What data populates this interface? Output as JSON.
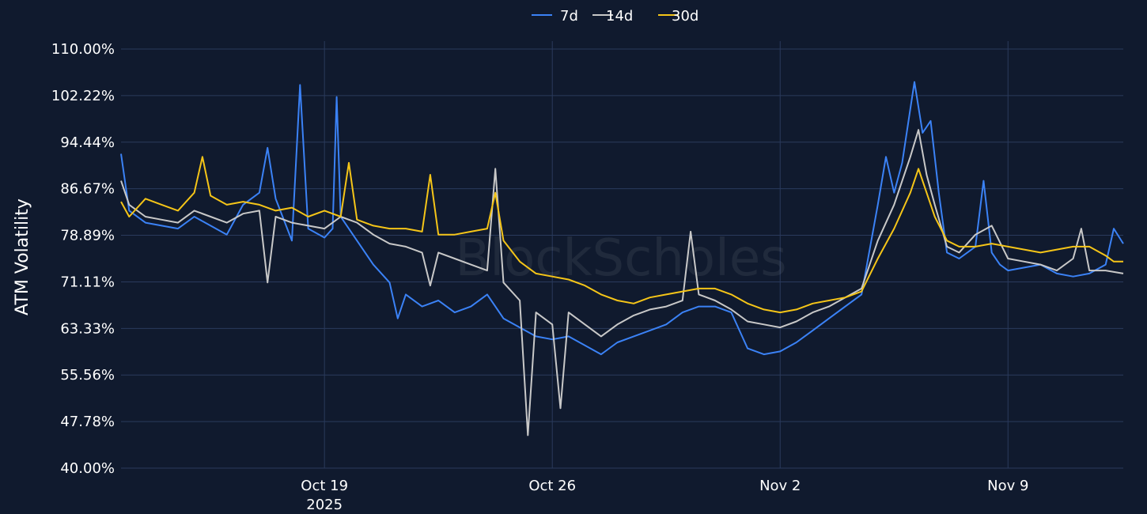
{
  "watermark": "BlockScholes",
  "colors": {
    "background": "#101a2e",
    "grid": "#2a3a5c",
    "text": "#ffffff"
  },
  "chart_data": {
    "type": "line",
    "ylabel": "ATM Volatility",
    "xlabel": "",
    "y_ticks": [
      "40.00%",
      "47.78%",
      "55.56%",
      "63.33%",
      "71.11%",
      "78.89%",
      "86.67%",
      "94.44%",
      "102.22%",
      "110.00%"
    ],
    "ylim": [
      40,
      110
    ],
    "x_range": [
      "2025-10-12T18:00",
      "2025-11-12T13:00"
    ],
    "x_ticks": [
      {
        "date": "2025-10-19",
        "label": "Oct 19",
        "sublabel": "2025"
      },
      {
        "date": "2025-10-26",
        "label": "Oct 26",
        "sublabel": ""
      },
      {
        "date": "2025-11-02",
        "label": "Nov 2",
        "sublabel": ""
      },
      {
        "date": "2025-11-09",
        "label": "Nov 9",
        "sublabel": ""
      }
    ],
    "grid": true,
    "legend_position": "top-center",
    "series": [
      {
        "name": "7d",
        "color": "#3b82f6",
        "points": [
          [
            "2025-10-12T18:00",
            92.5
          ],
          [
            "2025-10-13T00:00",
            83.0
          ],
          [
            "2025-10-13T12:00",
            81.0
          ],
          [
            "2025-10-14T00:00",
            80.5
          ],
          [
            "2025-10-14T12:00",
            80.0
          ],
          [
            "2025-10-15T00:00",
            82.0
          ],
          [
            "2025-10-15T12:00",
            80.5
          ],
          [
            "2025-10-16T00:00",
            79.0
          ],
          [
            "2025-10-16T12:00",
            84.0
          ],
          [
            "2025-10-17T00:00",
            86.0
          ],
          [
            "2025-10-17T06:00",
            93.5
          ],
          [
            "2025-10-17T12:00",
            85.0
          ],
          [
            "2025-10-18T00:00",
            78.0
          ],
          [
            "2025-10-18T06:00",
            104.0
          ],
          [
            "2025-10-18T12:00",
            80.0
          ],
          [
            "2025-10-19T00:00",
            78.5
          ],
          [
            "2025-10-19T06:00",
            80.0
          ],
          [
            "2025-10-19T09:00",
            102.0
          ],
          [
            "2025-10-19T12:00",
            82.0
          ],
          [
            "2025-10-20T00:00",
            78.0
          ],
          [
            "2025-10-20T12:00",
            74.0
          ],
          [
            "2025-10-21T00:00",
            71.0
          ],
          [
            "2025-10-21T06:00",
            65.0
          ],
          [
            "2025-10-21T12:00",
            69.0
          ],
          [
            "2025-10-22T00:00",
            67.0
          ],
          [
            "2025-10-22T12:00",
            68.0
          ],
          [
            "2025-10-23T00:00",
            66.0
          ],
          [
            "2025-10-23T12:00",
            67.0
          ],
          [
            "2025-10-24T00:00",
            69.0
          ],
          [
            "2025-10-24T12:00",
            65.0
          ],
          [
            "2025-10-25T00:00",
            63.5
          ],
          [
            "2025-10-25T12:00",
            62.0
          ],
          [
            "2025-10-26T00:00",
            61.5
          ],
          [
            "2025-10-26T12:00",
            62.0
          ],
          [
            "2025-10-27T00:00",
            60.5
          ],
          [
            "2025-10-27T12:00",
            59.0
          ],
          [
            "2025-10-28T00:00",
            61.0
          ],
          [
            "2025-10-28T12:00",
            62.0
          ],
          [
            "2025-10-29T00:00",
            63.0
          ],
          [
            "2025-10-29T12:00",
            64.0
          ],
          [
            "2025-10-30T00:00",
            66.0
          ],
          [
            "2025-10-30T12:00",
            67.0
          ],
          [
            "2025-10-31T00:00",
            67.0
          ],
          [
            "2025-10-31T12:00",
            66.0
          ],
          [
            "2025-11-01T00:00",
            60.0
          ],
          [
            "2025-11-01T12:00",
            59.0
          ],
          [
            "2025-11-02T00:00",
            59.5
          ],
          [
            "2025-11-02T12:00",
            61.0
          ],
          [
            "2025-11-03T00:00",
            63.0
          ],
          [
            "2025-11-03T12:00",
            65.0
          ],
          [
            "2025-11-04T00:00",
            67.0
          ],
          [
            "2025-11-04T12:00",
            69.0
          ],
          [
            "2025-11-05T00:00",
            84.0
          ],
          [
            "2025-11-05T06:00",
            92.0
          ],
          [
            "2025-11-05T12:00",
            86.0
          ],
          [
            "2025-11-05T18:00",
            91.0
          ],
          [
            "2025-11-06T00:00",
            100.0
          ],
          [
            "2025-11-06T03:00",
            104.5
          ],
          [
            "2025-11-06T09:00",
            96.0
          ],
          [
            "2025-11-06T15:00",
            98.0
          ],
          [
            "2025-11-06T21:00",
            86.0
          ],
          [
            "2025-11-07T03:00",
            76.0
          ],
          [
            "2025-11-07T12:00",
            75.0
          ],
          [
            "2025-11-08T00:00",
            77.0
          ],
          [
            "2025-11-08T06:00",
            88.0
          ],
          [
            "2025-11-08T12:00",
            76.0
          ],
          [
            "2025-11-08T18:00",
            74.0
          ],
          [
            "2025-11-09T00:00",
            73.0
          ],
          [
            "2025-11-09T12:00",
            73.5
          ],
          [
            "2025-11-10T00:00",
            74.0
          ],
          [
            "2025-11-10T12:00",
            72.5
          ],
          [
            "2025-11-11T00:00",
            72.0
          ],
          [
            "2025-11-11T12:00",
            72.5
          ],
          [
            "2025-11-12T00:00",
            74.0
          ],
          [
            "2025-11-12T06:00",
            80.0
          ],
          [
            "2025-11-12T13:00",
            77.5
          ]
        ]
      },
      {
        "name": "14d",
        "color": "#c8c8c8",
        "points": [
          [
            "2025-10-12T18:00",
            88.0
          ],
          [
            "2025-10-13T00:00",
            84.0
          ],
          [
            "2025-10-13T12:00",
            82.0
          ],
          [
            "2025-10-14T00:00",
            81.5
          ],
          [
            "2025-10-14T12:00",
            81.0
          ],
          [
            "2025-10-15T00:00",
            83.0
          ],
          [
            "2025-10-15T12:00",
            82.0
          ],
          [
            "2025-10-16T00:00",
            81.0
          ],
          [
            "2025-10-16T12:00",
            82.5
          ],
          [
            "2025-10-17T00:00",
            83.0
          ],
          [
            "2025-10-17T06:00",
            71.0
          ],
          [
            "2025-10-17T12:00",
            82.0
          ],
          [
            "2025-10-18T00:00",
            81.0
          ],
          [
            "2025-10-18T12:00",
            80.5
          ],
          [
            "2025-10-19T00:00",
            80.0
          ],
          [
            "2025-10-19T12:00",
            82.0
          ],
          [
            "2025-10-20T00:00",
            81.0
          ],
          [
            "2025-10-20T12:00",
            79.0
          ],
          [
            "2025-10-21T00:00",
            77.5
          ],
          [
            "2025-10-21T12:00",
            77.0
          ],
          [
            "2025-10-22T00:00",
            76.0
          ],
          [
            "2025-10-22T06:00",
            70.5
          ],
          [
            "2025-10-22T12:00",
            76.0
          ],
          [
            "2025-10-23T00:00",
            75.0
          ],
          [
            "2025-10-23T12:00",
            74.0
          ],
          [
            "2025-10-24T00:00",
            73.0
          ],
          [
            "2025-10-24T06:00",
            90.0
          ],
          [
            "2025-10-24T12:00",
            71.0
          ],
          [
            "2025-10-25T00:00",
            68.0
          ],
          [
            "2025-10-25T06:00",
            45.5
          ],
          [
            "2025-10-25T12:00",
            66.0
          ],
          [
            "2025-10-26T00:00",
            64.0
          ],
          [
            "2025-10-26T06:00",
            50.0
          ],
          [
            "2025-10-26T12:00",
            66.0
          ],
          [
            "2025-10-27T00:00",
            64.0
          ],
          [
            "2025-10-27T12:00",
            62.0
          ],
          [
            "2025-10-28T00:00",
            64.0
          ],
          [
            "2025-10-28T12:00",
            65.5
          ],
          [
            "2025-10-29T00:00",
            66.5
          ],
          [
            "2025-10-29T12:00",
            67.0
          ],
          [
            "2025-10-30T00:00",
            68.0
          ],
          [
            "2025-10-30T06:00",
            79.5
          ],
          [
            "2025-10-30T12:00",
            69.0
          ],
          [
            "2025-10-31T00:00",
            68.0
          ],
          [
            "2025-10-31T12:00",
            66.5
          ],
          [
            "2025-11-01T00:00",
            64.5
          ],
          [
            "2025-11-01T12:00",
            64.0
          ],
          [
            "2025-11-02T00:00",
            63.5
          ],
          [
            "2025-11-02T12:00",
            64.5
          ],
          [
            "2025-11-03T00:00",
            66.0
          ],
          [
            "2025-11-03T12:00",
            67.0
          ],
          [
            "2025-11-04T00:00",
            68.5
          ],
          [
            "2025-11-04T12:00",
            70.0
          ],
          [
            "2025-11-05T00:00",
            78.0
          ],
          [
            "2025-11-05T12:00",
            84.0
          ],
          [
            "2025-11-06T00:00",
            92.0
          ],
          [
            "2025-11-06T06:00",
            96.5
          ],
          [
            "2025-11-06T12:00",
            89.0
          ],
          [
            "2025-11-06T18:00",
            84.0
          ],
          [
            "2025-11-07T03:00",
            77.0
          ],
          [
            "2025-11-07T12:00",
            76.0
          ],
          [
            "2025-11-08T00:00",
            79.0
          ],
          [
            "2025-11-08T12:00",
            80.5
          ],
          [
            "2025-11-09T00:00",
            75.0
          ],
          [
            "2025-11-09T12:00",
            74.5
          ],
          [
            "2025-11-10T00:00",
            74.0
          ],
          [
            "2025-11-10T12:00",
            73.0
          ],
          [
            "2025-11-11T00:00",
            75.0
          ],
          [
            "2025-11-11T06:00",
            80.0
          ],
          [
            "2025-11-11T12:00",
            73.0
          ],
          [
            "2025-11-12T00:00",
            73.0
          ],
          [
            "2025-11-12T13:00",
            72.5
          ]
        ]
      },
      {
        "name": "30d",
        "color": "#f5c518",
        "points": [
          [
            "2025-10-12T18:00",
            84.5
          ],
          [
            "2025-10-13T00:00",
            82.0
          ],
          [
            "2025-10-13T12:00",
            85.0
          ],
          [
            "2025-10-14T00:00",
            84.0
          ],
          [
            "2025-10-14T12:00",
            83.0
          ],
          [
            "2025-10-15T00:00",
            86.0
          ],
          [
            "2025-10-15T06:00",
            92.0
          ],
          [
            "2025-10-15T12:00",
            85.5
          ],
          [
            "2025-10-16T00:00",
            84.0
          ],
          [
            "2025-10-16T12:00",
            84.5
          ],
          [
            "2025-10-17T00:00",
            84.0
          ],
          [
            "2025-10-17T12:00",
            83.0
          ],
          [
            "2025-10-18T00:00",
            83.5
          ],
          [
            "2025-10-18T12:00",
            82.0
          ],
          [
            "2025-10-19T00:00",
            83.0
          ],
          [
            "2025-10-19T12:00",
            82.0
          ],
          [
            "2025-10-19T18:00",
            91.0
          ],
          [
            "2025-10-20T00:00",
            81.5
          ],
          [
            "2025-10-20T12:00",
            80.5
          ],
          [
            "2025-10-21T00:00",
            80.0
          ],
          [
            "2025-10-21T12:00",
            80.0
          ],
          [
            "2025-10-22T00:00",
            79.5
          ],
          [
            "2025-10-22T06:00",
            89.0
          ],
          [
            "2025-10-22T12:00",
            79.0
          ],
          [
            "2025-10-23T00:00",
            79.0
          ],
          [
            "2025-10-23T12:00",
            79.5
          ],
          [
            "2025-10-24T00:00",
            80.0
          ],
          [
            "2025-10-24T06:00",
            86.0
          ],
          [
            "2025-10-24T12:00",
            78.0
          ],
          [
            "2025-10-25T00:00",
            74.5
          ],
          [
            "2025-10-25T12:00",
            72.5
          ],
          [
            "2025-10-26T00:00",
            72.0
          ],
          [
            "2025-10-26T12:00",
            71.5
          ],
          [
            "2025-10-27T00:00",
            70.5
          ],
          [
            "2025-10-27T12:00",
            69.0
          ],
          [
            "2025-10-28T00:00",
            68.0
          ],
          [
            "2025-10-28T12:00",
            67.5
          ],
          [
            "2025-10-29T00:00",
            68.5
          ],
          [
            "2025-10-29T12:00",
            69.0
          ],
          [
            "2025-10-30T00:00",
            69.5
          ],
          [
            "2025-10-30T12:00",
            70.0
          ],
          [
            "2025-10-31T00:00",
            70.0
          ],
          [
            "2025-10-31T12:00",
            69.0
          ],
          [
            "2025-11-01T00:00",
            67.5
          ],
          [
            "2025-11-01T12:00",
            66.5
          ],
          [
            "2025-11-02T00:00",
            66.0
          ],
          [
            "2025-11-02T12:00",
            66.5
          ],
          [
            "2025-11-03T00:00",
            67.5
          ],
          [
            "2025-11-03T12:00",
            68.0
          ],
          [
            "2025-11-04T00:00",
            68.5
          ],
          [
            "2025-11-04T12:00",
            69.5
          ],
          [
            "2025-11-05T00:00",
            75.0
          ],
          [
            "2025-11-05T12:00",
            80.0
          ],
          [
            "2025-11-06T00:00",
            86.0
          ],
          [
            "2025-11-06T06:00",
            90.0
          ],
          [
            "2025-11-06T12:00",
            86.0
          ],
          [
            "2025-11-06T18:00",
            82.0
          ],
          [
            "2025-11-07T03:00",
            78.0
          ],
          [
            "2025-11-07T12:00",
            77.0
          ],
          [
            "2025-11-08T00:00",
            77.0
          ],
          [
            "2025-11-08T12:00",
            77.5
          ],
          [
            "2025-11-09T00:00",
            77.0
          ],
          [
            "2025-11-09T12:00",
            76.5
          ],
          [
            "2025-11-10T00:00",
            76.0
          ],
          [
            "2025-11-10T12:00",
            76.5
          ],
          [
            "2025-11-11T00:00",
            77.0
          ],
          [
            "2025-11-11T12:00",
            77.0
          ],
          [
            "2025-11-12T00:00",
            75.5
          ],
          [
            "2025-11-12T06:00",
            74.5
          ],
          [
            "2025-11-12T13:00",
            74.5
          ]
        ]
      }
    ]
  }
}
